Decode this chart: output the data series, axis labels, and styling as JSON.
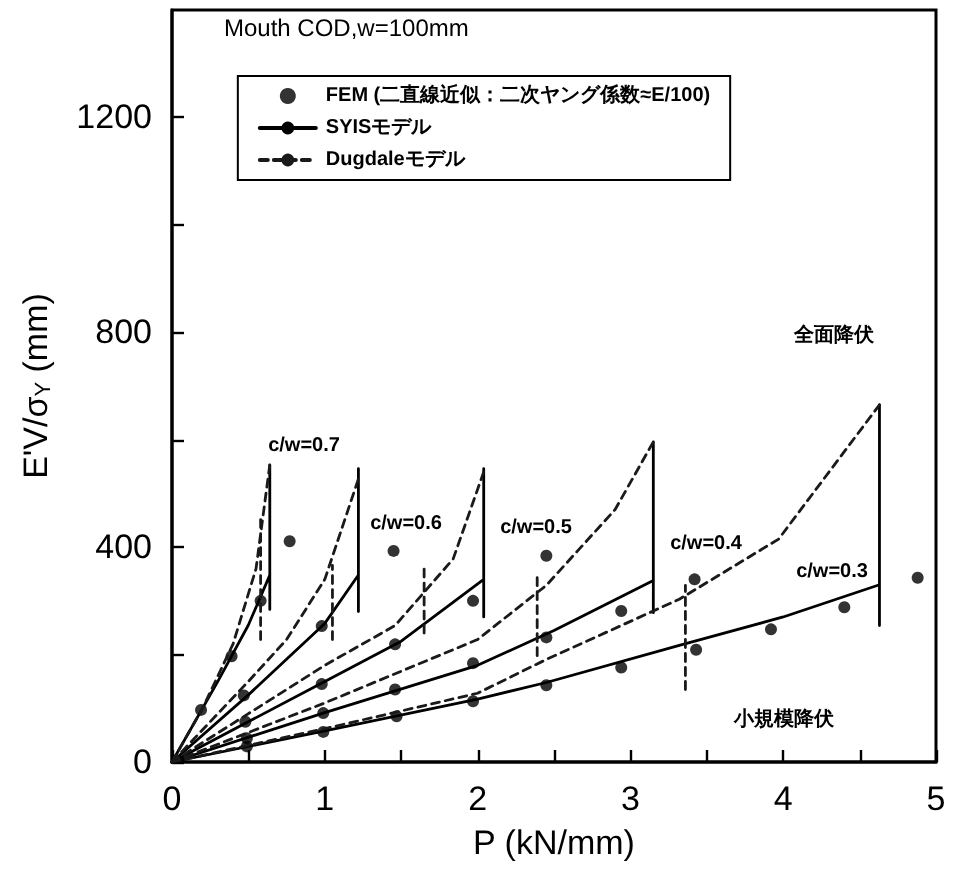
{
  "chart_data": {
    "type": "line",
    "xlabel": "P (kN/mm)",
    "ylabel": "E'V/σ$_{Y}$ (mm)",
    "xlim": [
      0,
      5
    ],
    "xticks": [
      0,
      {
        "value": 0.5,
        "label": null
      },
      1,
      {
        "value": 1.5,
        "label": null
      },
      2,
      {
        "value": 2.5,
        "label": null
      },
      3,
      {
        "value": 3.5,
        "label": null
      },
      4,
      {
        "value": 4.5,
        "label": null
      },
      5
    ],
    "ylim": [
      0,
      1400
    ],
    "yticks": [
      0,
      {
        "value": 200,
        "label": null
      },
      400,
      {
        "value": 600,
        "label": null
      },
      800,
      {
        "value": 1000,
        "label": null
      },
      1200
    ],
    "grid": false,
    "legend": "top",
    "series": [
      {
        "name": "FEM (二直線近似：二次ヤング係数≈E/100)",
        "type": "scatter",
        "marker": "circle",
        "color": "#000000",
        "x": [
          0.19,
          0.39,
          0.58,
          0.77,
          0.47,
          0.98,
          1.45,
          0.48,
          0.98,
          1.46,
          1.97,
          2.45,
          0.49,
          0.99,
          1.46,
          1.97,
          2.45,
          2.94,
          3.42,
          0.49,
          0.99,
          1.47,
          1.97,
          2.45,
          2.94,
          3.43,
          3.92,
          4.4,
          4.88
        ],
        "values": [
          97,
          197,
          300,
          411,
          124,
          253,
          393,
          75,
          145,
          219,
          300,
          384,
          44,
          91,
          135,
          184,
          232,
          281,
          340,
          29,
          56,
          85,
          113,
          143,
          176,
          209,
          247,
          288,
          343
        ]
      },
      {
        "name": "SYISモデル",
        "line_style": "solid",
        "marker": "none",
        "color": "#000000",
        "x": [
          0,
          0.3,
          0.5,
          0.64,
          null,
          0.64,
          0.64
        ],
        "values": [
          0,
          150,
          255,
          348,
          null,
          284,
          553
        ]
      },
      {
        "line_style": "solid",
        "marker": "none",
        "color": "#000000",
        "x": [
          0,
          0.5,
          1.0,
          1.22,
          null,
          1.22,
          1.22
        ],
        "values": [
          0,
          125,
          258,
          348,
          null,
          280,
          546
        ]
      },
      {
        "line_style": "solid",
        "marker": "none",
        "color": "#000000",
        "x": [
          0,
          1.0,
          1.5,
          2.04,
          null,
          2.04,
          2.04
        ],
        "values": [
          0,
          150,
          225,
          340,
          null,
          270,
          546
        ]
      },
      {
        "line_style": "solid",
        "marker": "none",
        "color": "#000000",
        "x": [
          0,
          1,
          2,
          2.5,
          3.15,
          null,
          3.15,
          3.15
        ],
        "values": [
          0,
          92,
          180,
          245,
          338,
          null,
          278,
          596
        ]
      },
      {
        "line_style": "solid",
        "marker": "none",
        "color": "#000000",
        "x": [
          0,
          1,
          2,
          2.45,
          3.32,
          4,
          4.63,
          null,
          4.63,
          4.63
        ],
        "values": [
          0,
          58,
          117,
          148,
          217,
          270,
          330,
          null,
          254,
          665
        ]
      },
      {
        "name": "Dugdaleモデル",
        "line_style": "dashed",
        "marker": "none",
        "color": "#1a1a1a",
        "x": [
          0,
          0.2,
          0.4,
          0.55,
          0.64,
          null,
          0.58,
          0.58
        ],
        "values": [
          0,
          100,
          220,
          360,
          553,
          null,
          228,
          460
        ]
      },
      {
        "line_style": "dashed",
        "marker": "none",
        "color": "#1a1a1a",
        "x": [
          0,
          0.5,
          0.75,
          1.0,
          1.22,
          null,
          1.05,
          1.05
        ],
        "values": [
          0,
          150,
          228,
          340,
          527,
          null,
          228,
          366
        ]
      },
      {
        "line_style": "dashed",
        "marker": "none",
        "color": "#1a1a1a",
        "x": [
          0,
          0.5,
          1.0,
          1.46,
          1.84,
          2.04,
          null,
          1.65,
          1.65
        ],
        "values": [
          0,
          90,
          180,
          254,
          378,
          540,
          null,
          240,
          370
        ]
      },
      {
        "line_style": "dashed",
        "marker": "none",
        "color": "#1a1a1a",
        "x": [
          0,
          1,
          2,
          2.45,
          2.9,
          3.15,
          null,
          2.39,
          2.39
        ],
        "values": [
          0,
          110,
          228,
          329,
          470,
          596,
          null,
          198,
          348
        ]
      },
      {
        "line_style": "dashed",
        "marker": "none",
        "color": "#1a1a1a",
        "x": [
          0,
          1,
          2,
          2.45,
          3.32,
          3.97,
          4.63,
          null,
          3.36,
          3.36
        ],
        "values": [
          0,
          62,
          128,
          191,
          303,
          415,
          665,
          null,
          135,
          329
        ]
      }
    ],
    "annotations": [
      "Mouth COD,w=100mm",
      "c/w=0.7",
      "c/w=0.6",
      "c/w=0.5",
      "c/w=0.4",
      "c/w=0.3",
      "全面降伏",
      "小規模降伏"
    ]
  }
}
